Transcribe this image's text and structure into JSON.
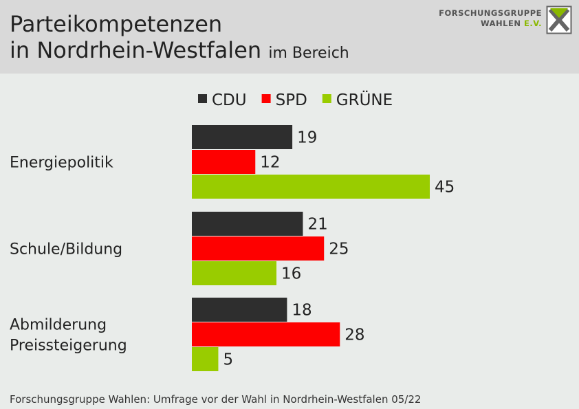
{
  "header": {
    "title_line1": "Parteikompetenzen",
    "title_line2": "in Nordrhein-Westfalen",
    "title_suffix": "im Bereich",
    "logo_line1": "FORSCHUNGSGRUPPE",
    "logo_line2": "WAHLEN",
    "logo_line2_suffix": "E.V."
  },
  "footer": {
    "source": "Forschungsgruppe Wahlen: Umfrage vor der Wahl in Nordrhein-Westfalen 05/22"
  },
  "colors": {
    "CDU": "#2e2e2e",
    "SPD": "#fe0000",
    "GRÜNE": "#99cc00",
    "background": "#e9ecea",
    "header": "#d9d9d9",
    "logo_accent": "#8ab800"
  },
  "chart_data": {
    "type": "bar",
    "orientation": "horizontal",
    "categories": [
      [
        "Energiepolitik"
      ],
      [
        "Schule/Bildung"
      ],
      [
        "Abmilderung",
        "Preissteigerung"
      ]
    ],
    "series": [
      {
        "name": "CDU",
        "values": [
          19,
          21,
          18
        ]
      },
      {
        "name": "SPD",
        "values": [
          12,
          25,
          28
        ]
      },
      {
        "name": "GRÜNE",
        "values": [
          45,
          16,
          5
        ]
      }
    ],
    "legend_position": "top",
    "data_labels": true,
    "grid": false,
    "xlim": [
      0,
      45
    ]
  }
}
